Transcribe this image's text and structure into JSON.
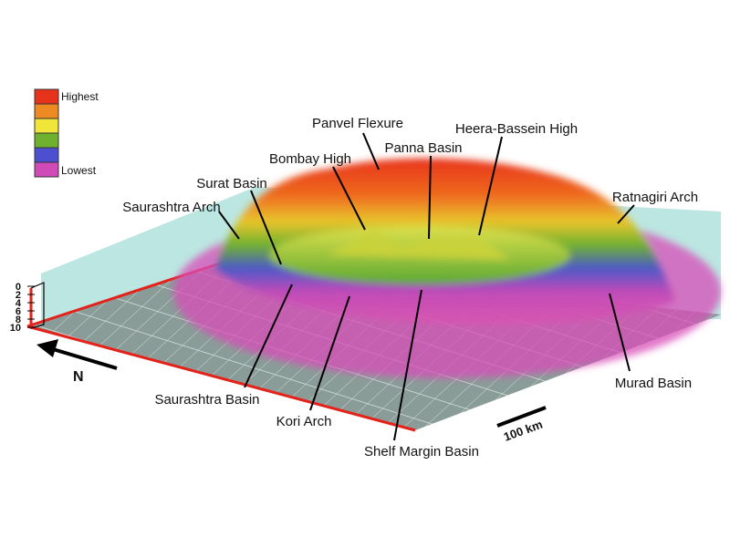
{
  "legend": {
    "high": "Highest",
    "low": "Lowest"
  },
  "depth_scale": {
    "ticks": [
      0,
      2,
      4,
      6,
      8,
      10
    ]
  },
  "north": "N",
  "scale_bar": "100 km",
  "labels": [
    "Panvel Flexure",
    "Heera-Bassein High",
    "Bombay High",
    "Panna Basin",
    "Surat Basin",
    "Saurashtra Arch",
    "Ratnagiri Arch",
    "Saurashtra Basin",
    "Kori Arch",
    "Shelf Margin Basin",
    "Murad Basin"
  ]
}
